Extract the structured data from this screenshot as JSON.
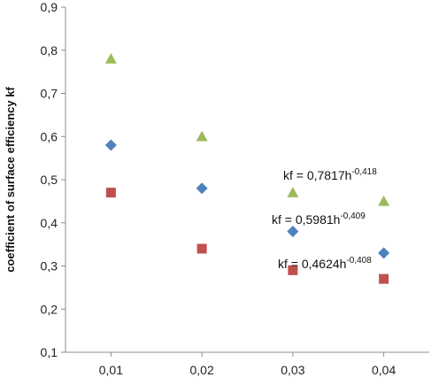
{
  "chart_data": {
    "type": "scatter",
    "title": "",
    "xlabel": "",
    "ylabel": "coefficient of surface efficiency kf",
    "xlim": [
      0.005,
      0.045
    ],
    "ylim": [
      0.1,
      0.9
    ],
    "x_ticks": [
      {
        "value": 0.01,
        "label": "0,01"
      },
      {
        "value": 0.02,
        "label": "0,02"
      },
      {
        "value": 0.03,
        "label": "0,03"
      },
      {
        "value": 0.04,
        "label": "0,04"
      }
    ],
    "y_ticks": [
      {
        "value": 0.1,
        "label": "0,1"
      },
      {
        "value": 0.2,
        "label": "0,2"
      },
      {
        "value": 0.3,
        "label": "0,3"
      },
      {
        "value": 0.4,
        "label": "0,4"
      },
      {
        "value": 0.5,
        "label": "0,5"
      },
      {
        "value": 0.6,
        "label": "0,6"
      },
      {
        "value": 0.7,
        "label": "0,7"
      },
      {
        "value": 0.8,
        "label": "0,8"
      },
      {
        "value": 0.9,
        "label": "0,9"
      }
    ],
    "grid": false,
    "legend": "none",
    "series": [
      {
        "marker": "triangle",
        "color": "#9BBB59",
        "x": [
          0.01,
          0.02,
          0.03,
          0.04
        ],
        "y": [
          0.78,
          0.6,
          0.47,
          0.45
        ],
        "trend": {
          "a": 0.7817,
          "b": -0.418
        },
        "equation": {
          "prefix": "kf = 0,7817h",
          "exponent": "-0,418"
        }
      },
      {
        "marker": "diamond",
        "color": "#4F81BD",
        "x": [
          0.01,
          0.02,
          0.03,
          0.04
        ],
        "y": [
          0.58,
          0.48,
          0.38,
          0.33
        ],
        "trend": {
          "a": 0.5981,
          "b": -0.409
        },
        "equation": {
          "prefix": "kf = 0,5981h",
          "exponent": "-0,409"
        }
      },
      {
        "marker": "square",
        "color": "#C0504D",
        "x": [
          0.01,
          0.02,
          0.03,
          0.04
        ],
        "y": [
          0.47,
          0.34,
          0.29,
          0.27
        ],
        "trend": {
          "a": 0.4624,
          "b": -0.408
        },
        "equation": {
          "prefix": "kf = 0,4624h",
          "exponent": "-0,408"
        }
      }
    ]
  }
}
